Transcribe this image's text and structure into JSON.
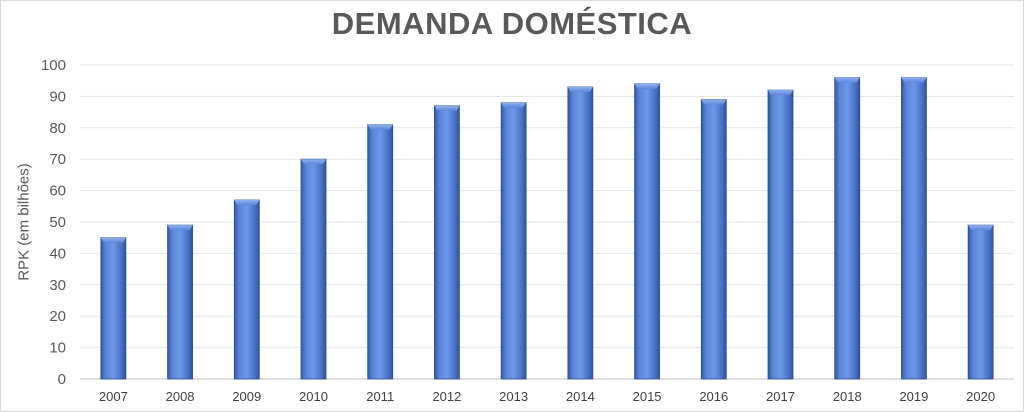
{
  "chart_data": {
    "type": "bar",
    "title": "DEMANDA DOMÉSTICA",
    "xlabel": "",
    "ylabel": "RPK (em bilhões)",
    "ylim": [
      0,
      100
    ],
    "yticks": [
      0,
      10,
      20,
      30,
      40,
      50,
      60,
      70,
      80,
      90,
      100
    ],
    "grid": true,
    "legend": "none",
    "categories": [
      "2007",
      "2008",
      "2009",
      "2010",
      "2011",
      "2012",
      "2013",
      "2014",
      "2015",
      "2016",
      "2017",
      "2018",
      "2019",
      "2020"
    ],
    "values": [
      45,
      49,
      57,
      70,
      81,
      87,
      88,
      93,
      94,
      89,
      92,
      96,
      96,
      49
    ],
    "bar_color": "#4a74c9"
  }
}
